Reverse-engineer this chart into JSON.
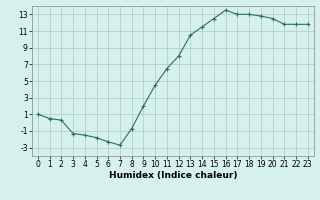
{
  "x": [
    0,
    1,
    2,
    3,
    4,
    5,
    6,
    7,
    8,
    9,
    10,
    11,
    12,
    13,
    14,
    15,
    16,
    17,
    18,
    19,
    20,
    21,
    22,
    23
  ],
  "y": [
    1.0,
    0.5,
    0.3,
    -1.3,
    -1.5,
    -1.8,
    -2.3,
    -2.7,
    -0.7,
    2.0,
    4.5,
    6.5,
    8.0,
    10.5,
    11.5,
    12.5,
    13.5,
    13.0,
    13.0,
    12.8,
    12.5,
    11.8,
    11.8,
    11.8
  ],
  "line_color": "#2d6e63",
  "marker": "+",
  "marker_size": 3,
  "bg_color": "#d6f0eb",
  "grid_color": "#aaccc6",
  "xlabel": "Humidex (Indice chaleur)",
  "xlim": [
    -0.5,
    23.5
  ],
  "ylim": [
    -4,
    14
  ],
  "xticks": [
    0,
    1,
    2,
    3,
    4,
    5,
    6,
    7,
    8,
    9,
    10,
    11,
    12,
    13,
    14,
    15,
    16,
    17,
    18,
    19,
    20,
    21,
    22,
    23
  ],
  "yticks": [
    -3,
    -1,
    1,
    3,
    5,
    7,
    9,
    11,
    13
  ],
  "xlabel_fontsize": 6.5,
  "tick_fontsize": 5.5
}
